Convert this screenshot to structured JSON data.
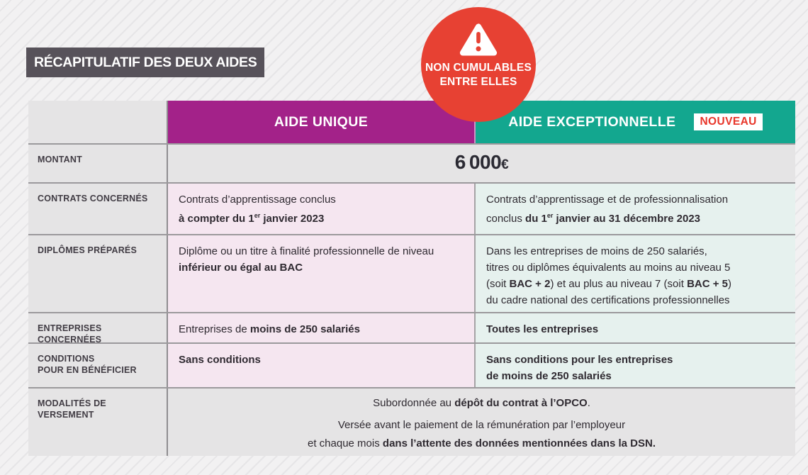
{
  "title": "RÉCAPITULATIF DES DEUX AIDES",
  "warning_badge": {
    "icon": "warning-triangle-icon",
    "line1": "NON CUMULABLES",
    "line2": "ENTRE ELLES"
  },
  "colors": {
    "aide_unique_header": "#a32289",
    "aide_exceptionnelle_header": "#13a78f",
    "warning_red": "#e74133",
    "nouveau_text_red": "#e8362a",
    "title_box_gray": "#57525a",
    "row_gray": "#e5e4e5",
    "cell_pink": "#f5e6f0",
    "cell_pale_teal": "#e6f1ee"
  },
  "table": {
    "column_headers": [
      {
        "label": "AIDE UNIQUE"
      },
      {
        "label": "AIDE EXCEPTIONNELLE",
        "badge": "NOUVEAU"
      }
    ],
    "rows": [
      {
        "key": "montant",
        "label_lines": [
          "MONTANT"
        ],
        "span": true,
        "lines": [
          [
            {
              "t": "6 000",
              "b": true
            },
            {
              "t": "€",
              "b": true,
              "small": true
            }
          ]
        ]
      },
      {
        "key": "contrats",
        "label_lines": [
          "CONTRATS CONCERNÉS"
        ],
        "span": false,
        "cell1": [
          [
            {
              "t": "Contrats d’apprentissage conclus"
            }
          ],
          [
            {
              "t": "à compter du 1",
              "b": true
            },
            {
              "t": "er",
              "b": true,
              "sup": true
            },
            {
              "t": " janvier 2023",
              "b": true
            }
          ]
        ],
        "cell2": [
          [
            {
              "t": "Contrats d’apprentissage et de professionnalisation"
            }
          ],
          [
            {
              "t": "conclus "
            },
            {
              "t": "du 1",
              "b": true
            },
            {
              "t": "er",
              "b": true,
              "sup": true
            },
            {
              "t": " janvier au 31 décembre 2023",
              "b": true
            }
          ]
        ]
      },
      {
        "key": "diplomes",
        "label_lines": [
          "DIPLÔMES PRÉPARÉS"
        ],
        "span": false,
        "cell1": [
          [
            {
              "t": "Diplôme ou un titre à finalité professionnelle de niveau"
            }
          ],
          [
            {
              "t": "inférieur ou égal au BAC",
              "b": true
            }
          ]
        ],
        "cell2": [
          [
            {
              "t": "Dans les entreprises de moins de 250 salariés,"
            }
          ],
          [
            {
              "t": "titres ou diplômes équivalents au moins au niveau 5"
            }
          ],
          [
            {
              "t": "(soit "
            },
            {
              "t": "BAC + 2",
              "b": true
            },
            {
              "t": ") et au plus au niveau 7 (soit "
            },
            {
              "t": "BAC + 5",
              "b": true
            },
            {
              "t": ")"
            }
          ],
          [
            {
              "t": "du cadre national des certifications professionnelles"
            }
          ]
        ]
      },
      {
        "key": "entreprises",
        "label_lines": [
          "ENTREPRISES CONCERNÉES"
        ],
        "span": false,
        "cell1": [
          [
            {
              "t": "Entreprises de "
            },
            {
              "t": "moins de 250 salariés",
              "b": true
            }
          ]
        ],
        "cell2": [
          [
            {
              "t": "Toutes les entreprises",
              "b": true
            }
          ]
        ]
      },
      {
        "key": "conditions",
        "label_lines": [
          "CONDITIONS",
          "POUR EN BÉNÉFICIER"
        ],
        "span": false,
        "cell1": [
          [
            {
              "t": "Sans conditions",
              "b": true
            }
          ]
        ],
        "cell2": [
          [
            {
              "t": "Sans conditions pour les entreprises",
              "b": true
            }
          ],
          [
            {
              "t": "de moins de 250 salariés",
              "b": true
            }
          ]
        ]
      },
      {
        "key": "modalites",
        "label_lines": [
          "MODALITÉS DE VERSEMENT"
        ],
        "span": true,
        "lines": [
          [
            {
              "t": "Subordonnée au "
            },
            {
              "t": "dépôt du contrat à l’OPCO",
              "b": true
            },
            {
              "t": "."
            }
          ],
          [
            {
              "t": "Versée avant le paiement de la rémunération par l’employeur"
            }
          ],
          [
            {
              "t": "et chaque mois "
            },
            {
              "t": "dans l’attente des données mentionnées dans la DSN.",
              "b": true
            }
          ]
        ]
      }
    ]
  }
}
